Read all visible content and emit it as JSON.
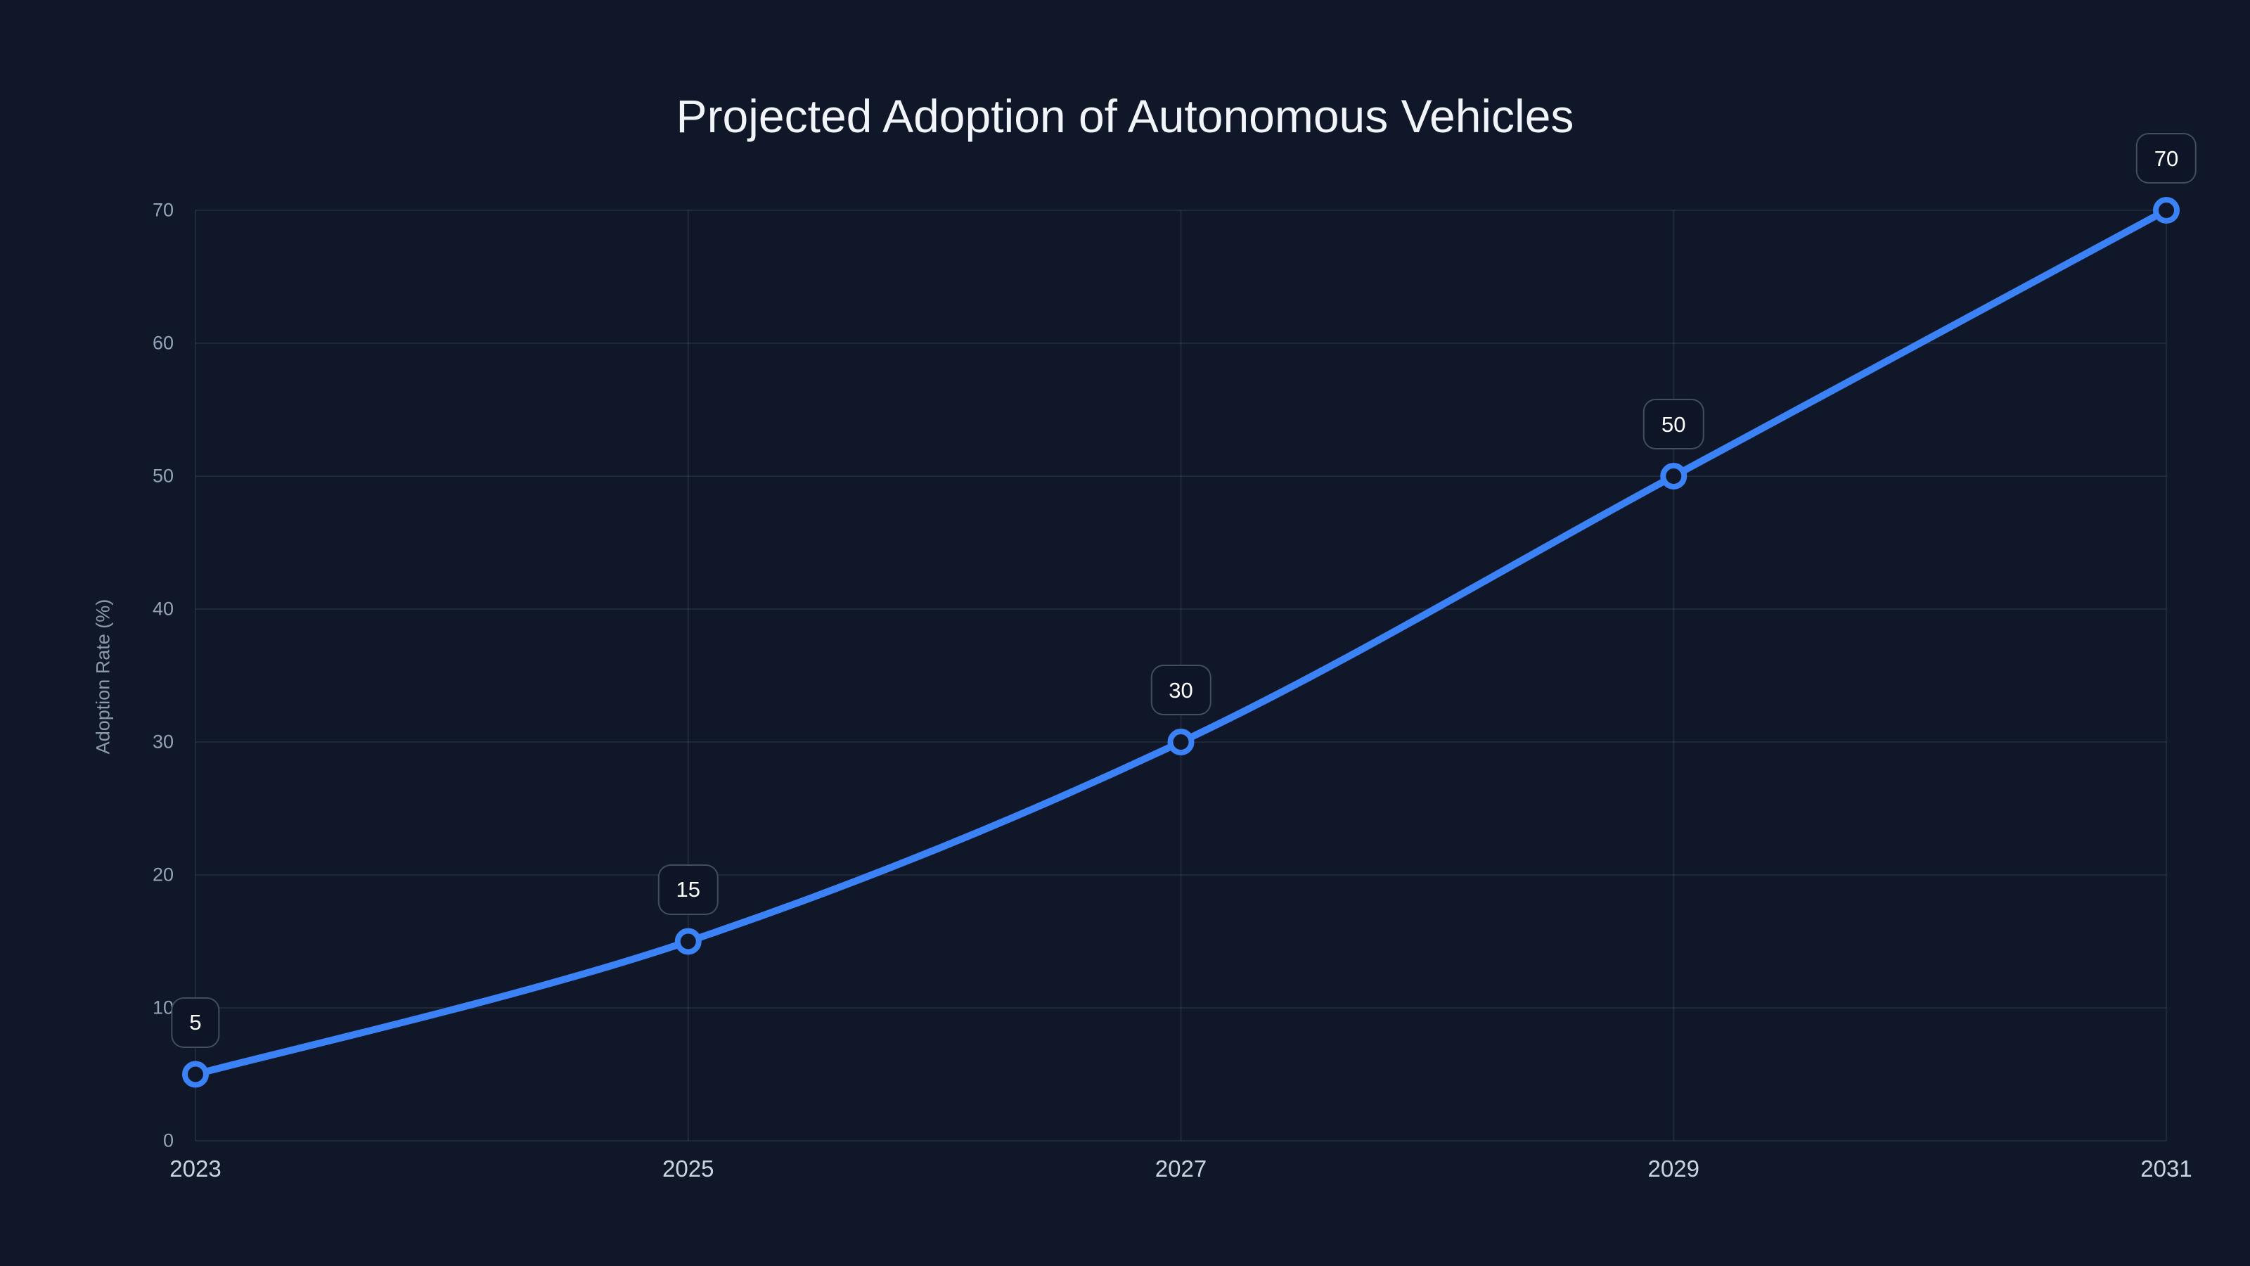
{
  "page": {
    "background": "#0f1728"
  },
  "chart_data": {
    "type": "line",
    "title": "Projected Adoption of Autonomous Vehicles",
    "xlabel": "",
    "ylabel": "Adoption Rate (%)",
    "x": [
      "2023",
      "2025",
      "2027",
      "2029",
      "2031"
    ],
    "series": [
      {
        "name": "Adoption Rate (%)",
        "values": [
          5,
          15,
          30,
          50,
          70
        ]
      }
    ],
    "point_labels": [
      "5",
      "15",
      "30",
      "50",
      "70"
    ],
    "y_ticks": [
      0,
      10,
      20,
      30,
      40,
      50,
      60,
      70
    ],
    "ylim": [
      0,
      70
    ],
    "grid": true,
    "legend": false,
    "smooth": true,
    "marker": "open-circle",
    "colors": {
      "background": "#0f1728",
      "line": "#3b82f6",
      "marker_stroke": "#3b82f6",
      "marker_fill": "#0f1728",
      "grid": "rgba(148,163,184,0.13)",
      "y_tick_text": "#94a3b8",
      "x_tick_text": "#cbd5e1",
      "axis_title_text": "#8b99ad",
      "title_text": "#f1f5f9",
      "badge_background": "#0d1526",
      "badge_border": "rgba(148,163,184,0.40)",
      "badge_text": "#ffffff"
    }
  }
}
